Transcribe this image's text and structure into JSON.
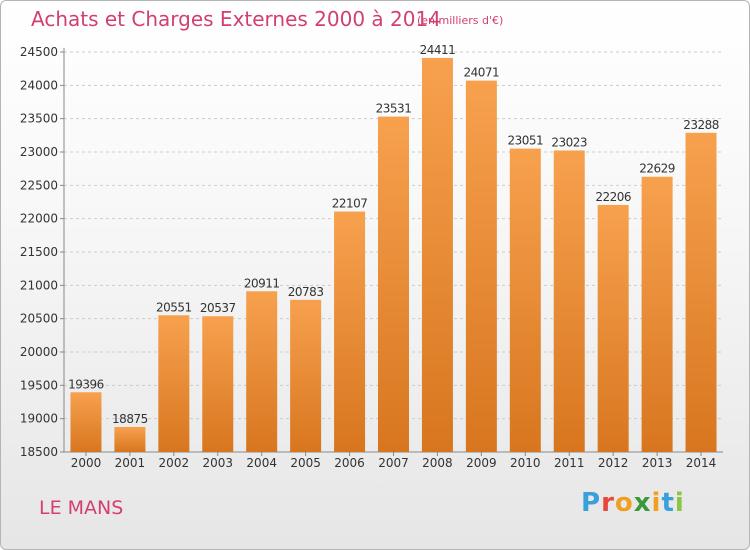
{
  "header": {
    "title": "Achats et Charges Externes 2000 à 2014",
    "unit": "(en milliers d'€)"
  },
  "footer": {
    "city": "LE MANS",
    "logo_text": "Proxiti"
  },
  "colors": {
    "title": "#d24070",
    "bar_light": "#f7a14e",
    "bar_dark": "#d8761f",
    "grid": "#cccccc"
  },
  "chart_data": {
    "type": "bar",
    "title": "Achats et Charges Externes 2000 à 2014",
    "subtitle": "(en milliers d'€)",
    "xlabel": "",
    "ylabel": "",
    "categories": [
      "2000",
      "2001",
      "2002",
      "2003",
      "2004",
      "2005",
      "2006",
      "2007",
      "2008",
      "2009",
      "2010",
      "2011",
      "2012",
      "2013",
      "2014"
    ],
    "values": [
      19396,
      18875,
      20551,
      20537,
      20911,
      20783,
      22107,
      23531,
      24411,
      24071,
      23051,
      23023,
      22206,
      22629,
      23288
    ],
    "ylim": [
      18500,
      24500
    ],
    "yticks": [
      18500,
      19000,
      19500,
      20000,
      20500,
      21000,
      21500,
      22000,
      22500,
      23000,
      23500,
      24000,
      24500
    ],
    "grid": true,
    "data_labels": true
  }
}
